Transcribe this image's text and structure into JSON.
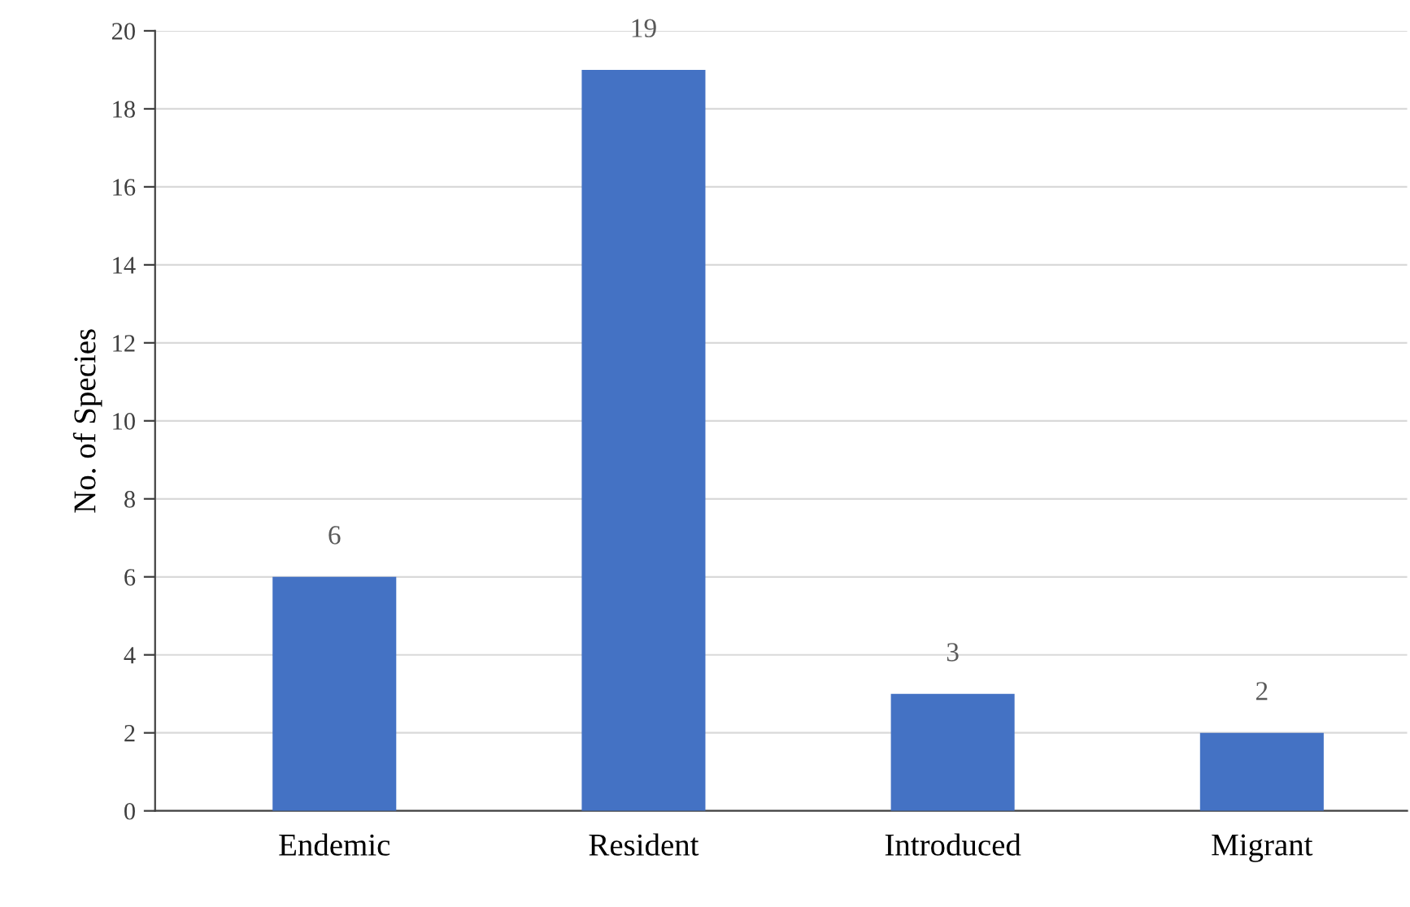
{
  "chart_data": {
    "type": "bar",
    "ylabel": "No. of Species",
    "categories": [
      "Endemic",
      "Resident",
      "Introduced",
      "Migrant"
    ],
    "values": [
      6,
      19,
      3,
      2
    ],
    "color": "#4472c4",
    "ylim": [
      0,
      20
    ],
    "yticks": [
      0,
      2,
      4,
      6,
      8,
      10,
      12,
      14,
      16,
      18,
      20
    ],
    "grid": "y",
    "data_labels": true
  }
}
